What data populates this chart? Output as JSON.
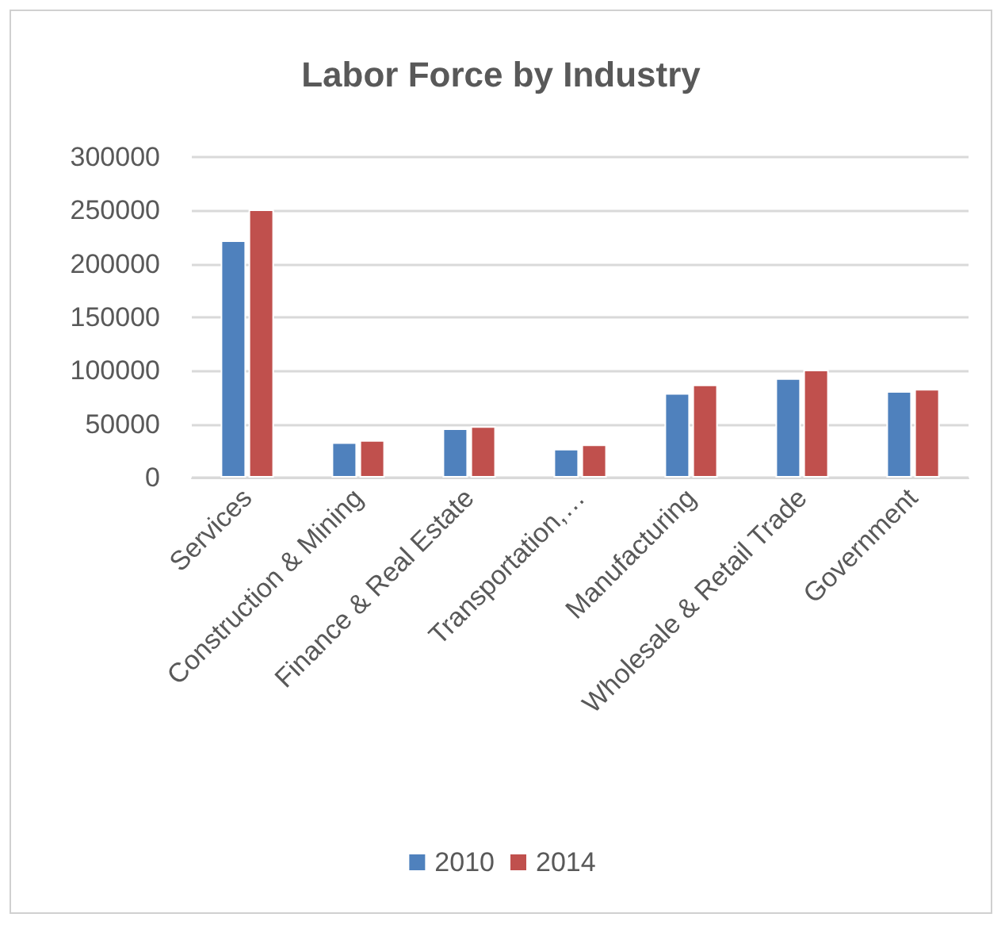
{
  "chart_data": {
    "type": "bar",
    "title": "Labor Force by Industry",
    "categories": [
      "Services",
      "Construction & Mining",
      "Finance & Real Estate",
      "Transportation,…",
      "Manufacturing",
      "Wholesale & Retail Trade",
      "Government"
    ],
    "series": [
      {
        "name": "2010",
        "color": "#4f81bd",
        "values": [
          222000,
          33000,
          46000,
          27000,
          79000,
          93000,
          81000
        ]
      },
      {
        "name": "2014",
        "color": "#c0504d",
        "values": [
          251000,
          35000,
          48000,
          31000,
          87000,
          101000,
          83000
        ]
      }
    ],
    "ylim": [
      0,
      300000
    ],
    "yticks": [
      0,
      50000,
      100000,
      150000,
      200000,
      250000,
      300000
    ],
    "grid": "y",
    "legend": "bottom"
  }
}
